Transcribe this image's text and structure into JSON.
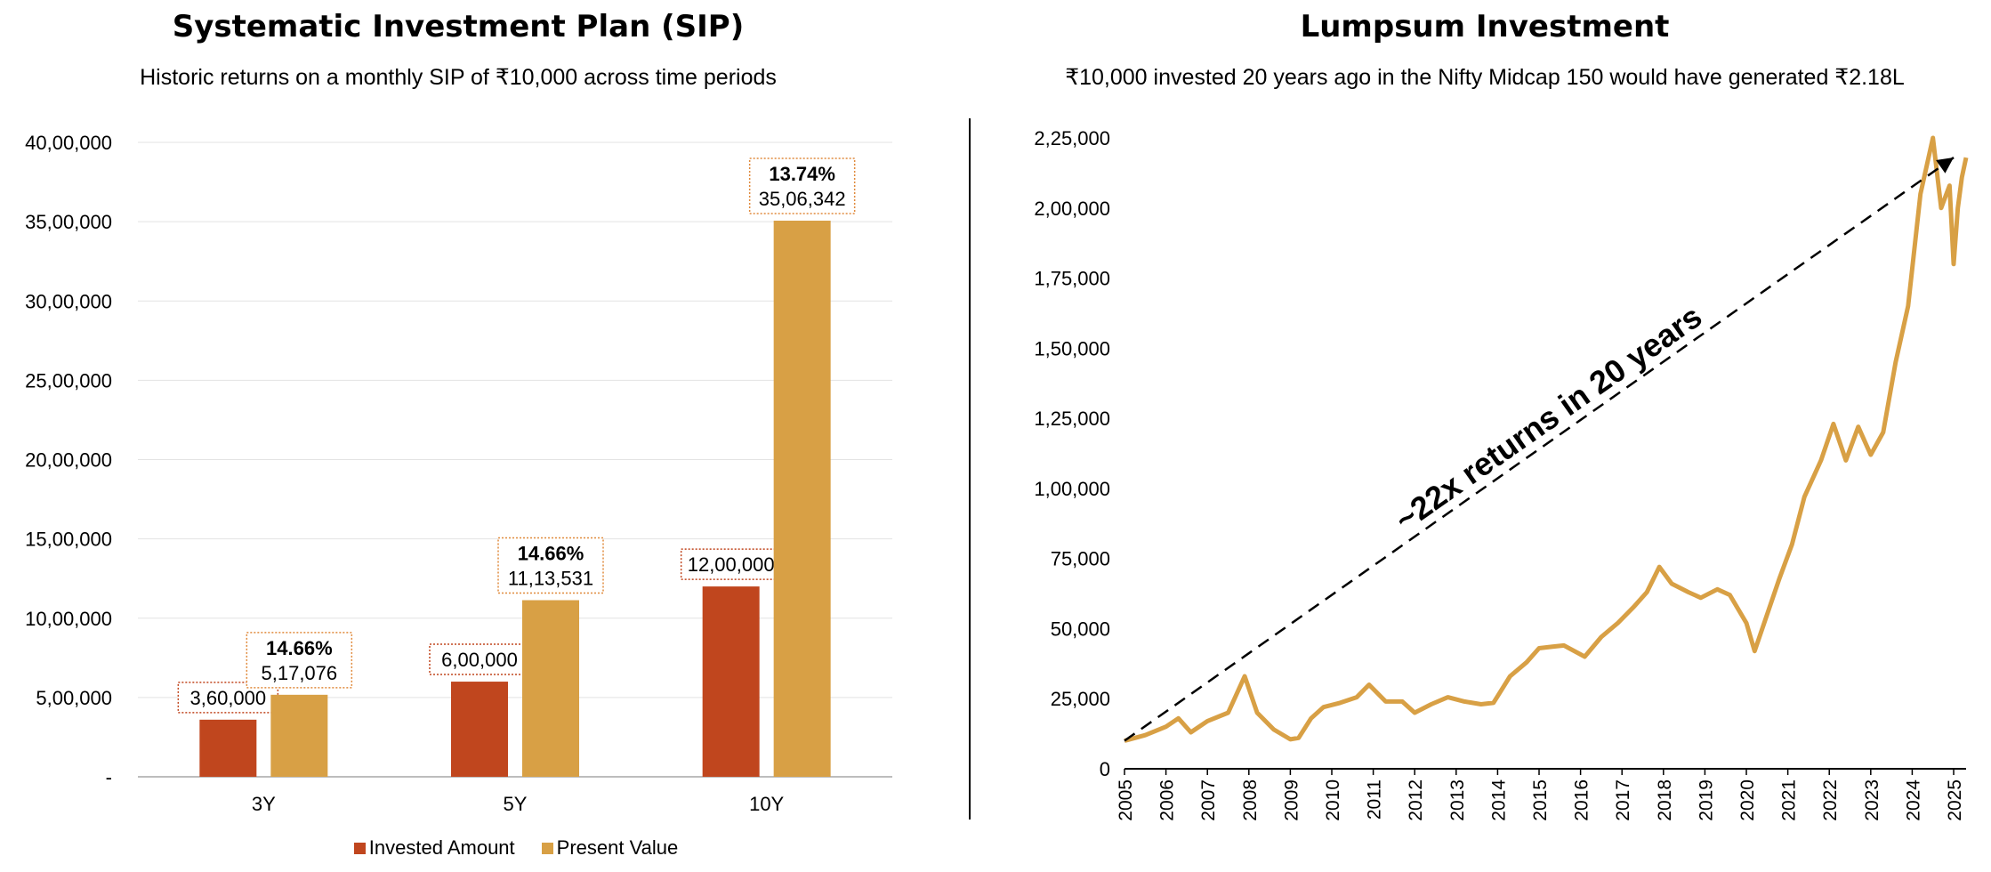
{
  "chart_data": [
    {
      "type": "bar",
      "title": "Systematic Investment Plan (SIP)",
      "subtitle": "Historic returns on a monthly SIP of ₹10,000 across time periods",
      "categories": [
        "3Y",
        "5Y",
        "10Y"
      ],
      "series": [
        {
          "name": "Invested Amount",
          "values": [
            360000,
            600000,
            1200000
          ],
          "labels": [
            "3,60,000",
            "6,00,000",
            "12,00,000"
          ],
          "color": "#C0461E"
        },
        {
          "name": "Present Value",
          "values": [
            517076,
            1113531,
            3506342
          ],
          "labels": [
            "5,17,076",
            "11,13,531",
            "35,06,342"
          ],
          "returns": [
            "14.66%",
            "14.66%",
            "13.74%"
          ],
          "color": "#D8A045"
        }
      ],
      "yticks": [
        "-",
        "5,00,000",
        "10,00,000",
        "15,00,000",
        "20,00,000",
        "25,00,000",
        "30,00,000",
        "35,00,000",
        "40,00,000"
      ],
      "ylim": [
        0,
        4000000
      ],
      "grid": true,
      "legend_position": "bottom"
    },
    {
      "type": "line",
      "title": "Lumpsum Investment",
      "subtitle": "₹10,000 invested 20 years ago in the Nifty Midcap 150 would have generated ₹2.18L",
      "annotation": "~22x returns in 20 years",
      "color": "#D8A045",
      "ylim": [
        0,
        225000
      ],
      "yticks": [
        "0",
        "25,000",
        "50,000",
        "75,000",
        "1,00,000",
        "1,25,000",
        "1,50,000",
        "1,75,000",
        "2,00,000",
        "2,25,000"
      ],
      "xticks": [
        "2005",
        "2006",
        "2007",
        "2008",
        "2009",
        "2010",
        "2011",
        "2012",
        "2013",
        "2014",
        "2015",
        "2016",
        "2017",
        "2018",
        "2019",
        "2020",
        "2021",
        "2022",
        "2023",
        "2024",
        "2025"
      ],
      "x": [
        2005.0,
        2005.5,
        2006.0,
        2006.3,
        2006.6,
        2007.0,
        2007.5,
        2007.9,
        2008.2,
        2008.6,
        2009.0,
        2009.2,
        2009.5,
        2009.8,
        2010.2,
        2010.6,
        2010.9,
        2011.3,
        2011.7,
        2012.0,
        2012.4,
        2012.8,
        2013.2,
        2013.6,
        2013.9,
        2014.3,
        2014.7,
        2015.0,
        2015.3,
        2015.6,
        2016.1,
        2016.5,
        2016.9,
        2017.3,
        2017.6,
        2017.9,
        2018.2,
        2018.6,
        2018.9,
        2019.3,
        2019.6,
        2020.0,
        2020.2,
        2020.5,
        2020.8,
        2021.1,
        2021.4,
        2021.8,
        2022.1,
        2022.4,
        2022.7,
        2023.0,
        2023.3,
        2023.6,
        2023.9,
        2024.2,
        2024.5,
        2024.7,
        2024.9,
        2025.0,
        2025.1,
        2025.2,
        2025.3
      ],
      "y": [
        10000,
        12000,
        15000,
        18000,
        13000,
        17000,
        20000,
        33000,
        20000,
        14000,
        10500,
        11000,
        18000,
        22000,
        23500,
        25500,
        30000,
        24000,
        24000,
        20000,
        23000,
        25500,
        24000,
        23000,
        23500,
        33000,
        38000,
        43000,
        43500,
        44000,
        40000,
        47000,
        52000,
        58000,
        63000,
        72000,
        66000,
        63000,
        61000,
        64000,
        62000,
        52000,
        42000,
        55000,
        68000,
        80000,
        97000,
        110000,
        123000,
        110000,
        122000,
        112000,
        120000,
        145000,
        165000,
        205000,
        225000,
        200000,
        208000,
        180000,
        200000,
        211000,
        218000
      ]
    }
  ]
}
